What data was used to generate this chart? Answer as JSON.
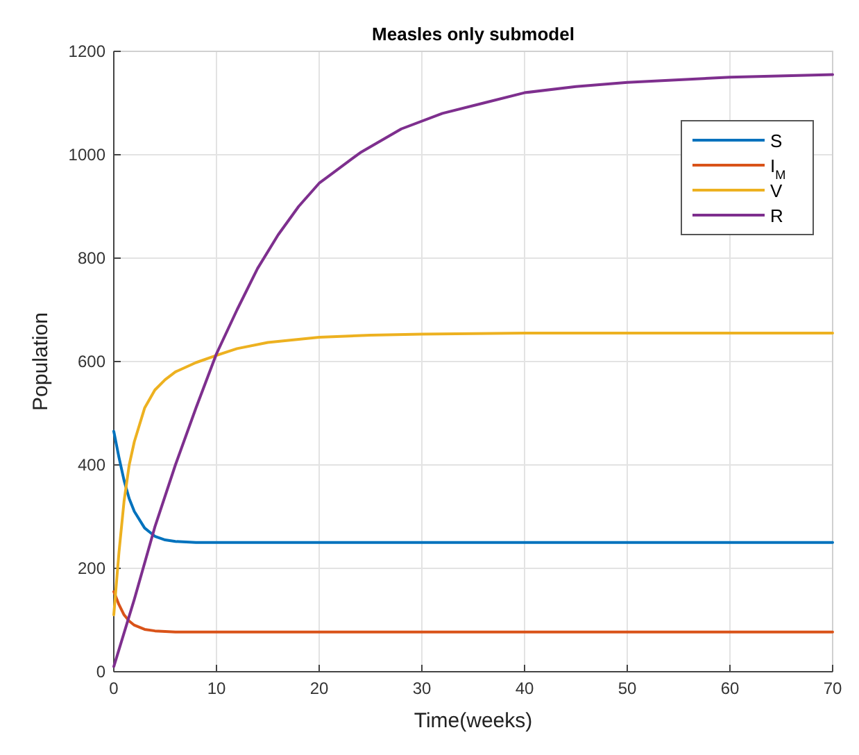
{
  "chart_data": {
    "type": "line",
    "title": "Measles only submodel",
    "xlabel": "Time(weeks)",
    "ylabel": "Population",
    "xlim": [
      0,
      70
    ],
    "ylim": [
      0,
      1200
    ],
    "xticks": [
      0,
      10,
      20,
      30,
      40,
      50,
      60,
      70
    ],
    "yticks": [
      0,
      200,
      400,
      600,
      800,
      1000,
      1200
    ],
    "grid": true,
    "legend": "top right",
    "series": [
      {
        "name": "S",
        "color": "#0072bd",
        "x": [
          0,
          0.5,
          1,
          1.5,
          2,
          3,
          4,
          5,
          6,
          8,
          10,
          20,
          70
        ],
        "values": [
          465,
          415,
          370,
          335,
          310,
          278,
          262,
          255,
          252,
          250,
          250,
          250,
          250
        ]
      },
      {
        "name": "I$_{M}$",
        "color": "#d95319",
        "x": [
          0,
          0.5,
          1,
          1.5,
          2,
          3,
          4,
          6,
          8,
          20,
          70
        ],
        "values": [
          155,
          130,
          110,
          98,
          90,
          82,
          79,
          77,
          77,
          77,
          77
        ]
      },
      {
        "name": "V",
        "color": "#edb120",
        "x": [
          0,
          0.5,
          1,
          1.5,
          2,
          3,
          4,
          5,
          6,
          8,
          10,
          12,
          15,
          20,
          25,
          30,
          40,
          70
        ],
        "values": [
          110,
          230,
          330,
          400,
          445,
          510,
          545,
          565,
          580,
          598,
          612,
          625,
          637,
          647,
          651,
          653,
          655,
          655
        ]
      },
      {
        "name": "R",
        "color": "#7e2f8e",
        "x": [
          0,
          2,
          4,
          6,
          8,
          10,
          12,
          14,
          16,
          18,
          20,
          24,
          28,
          32,
          36,
          40,
          45,
          50,
          60,
          70
        ],
        "values": [
          10,
          140,
          280,
          400,
          510,
          615,
          700,
          780,
          845,
          900,
          945,
          1004,
          1050,
          1080,
          1100,
          1120,
          1132,
          1140,
          1150,
          1155
        ]
      }
    ]
  }
}
